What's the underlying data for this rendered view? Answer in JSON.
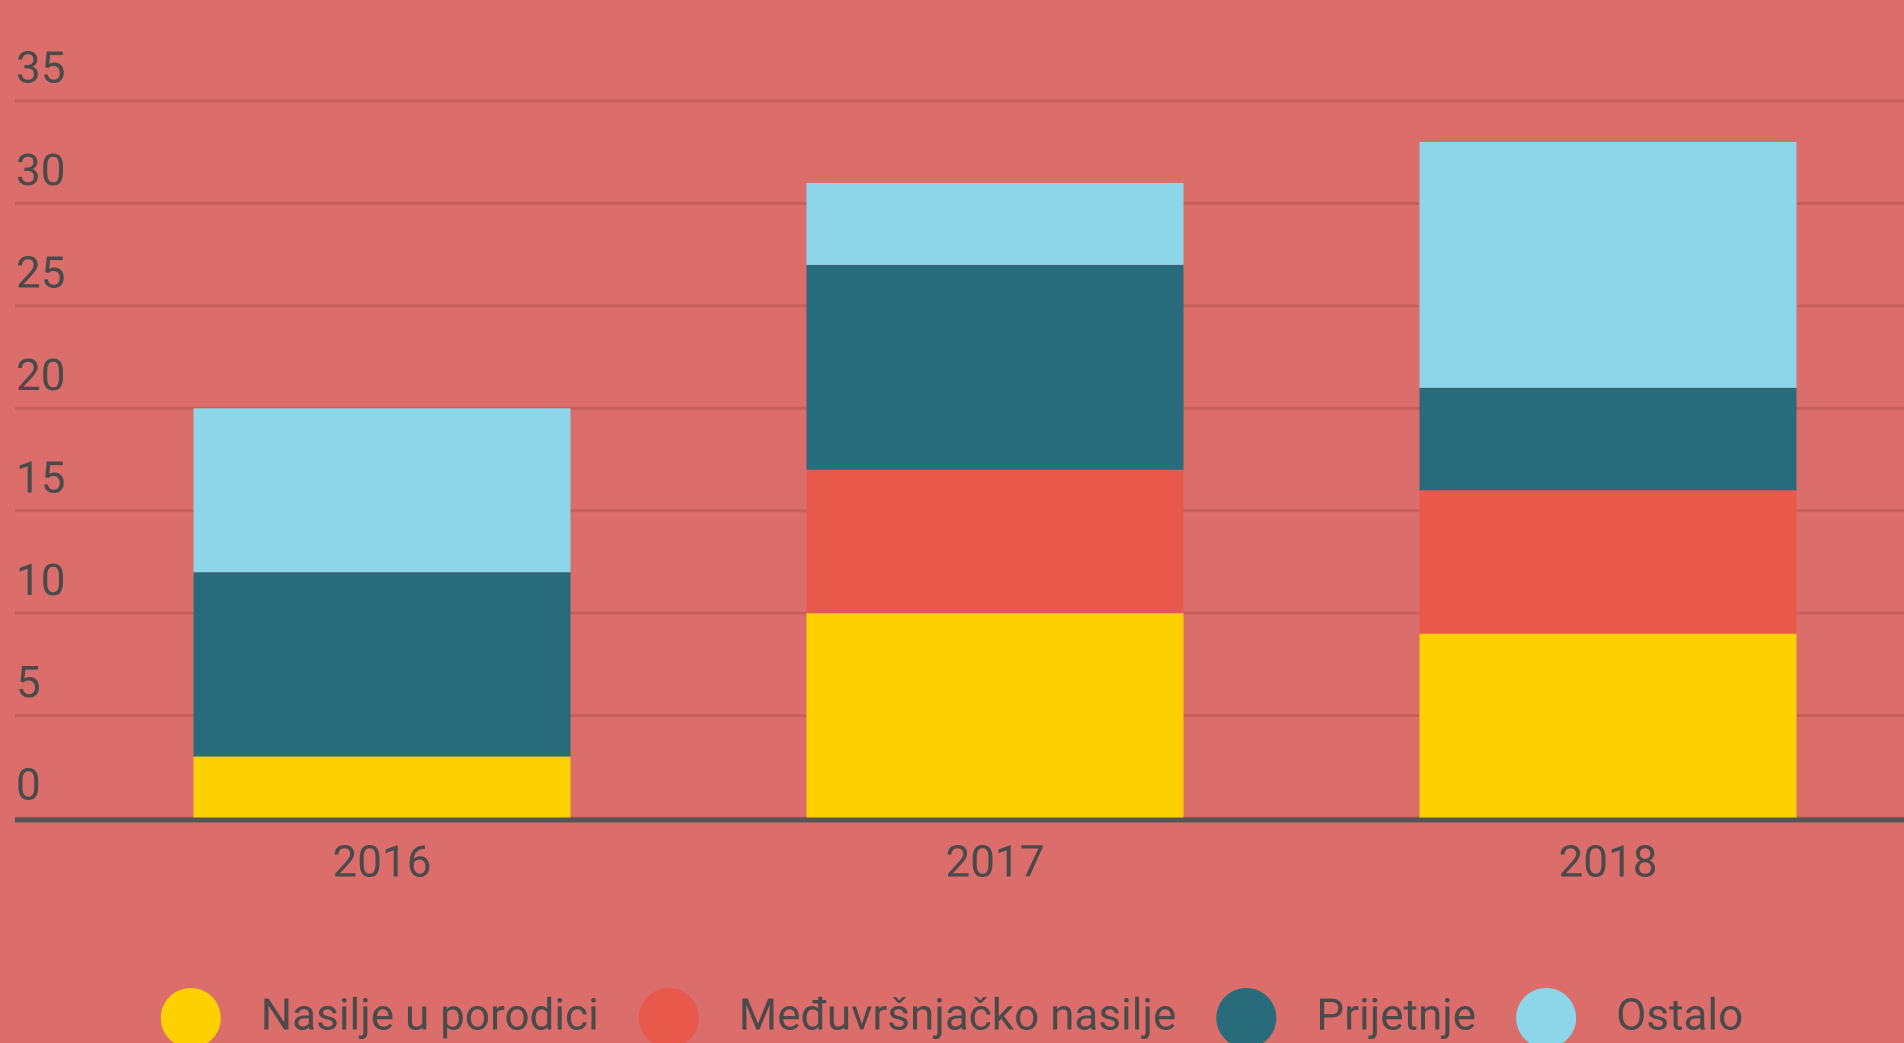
{
  "chart_data": {
    "type": "stacked_bar",
    "categories": [
      "2016",
      "2017",
      "2018"
    ],
    "series": [
      {
        "name": "Nasilje u porodici",
        "color": "#ffd000",
        "values": [
          3,
          10,
          9
        ]
      },
      {
        "name": "Međuvršnjačko nasilje",
        "color": "#e8594b",
        "values": [
          0,
          7,
          7
        ]
      },
      {
        "name": "Prijetnje",
        "color": "#286b7a",
        "values": [
          9,
          10,
          5
        ]
      },
      {
        "name": "Ostalo",
        "color": "#8dd6ea",
        "values": [
          8,
          4,
          12
        ]
      }
    ],
    "ylim": [
      0,
      35
    ],
    "yticks": [
      0,
      5,
      10,
      15,
      20,
      25,
      30,
      35
    ],
    "grid": true,
    "legend": "bottom"
  }
}
